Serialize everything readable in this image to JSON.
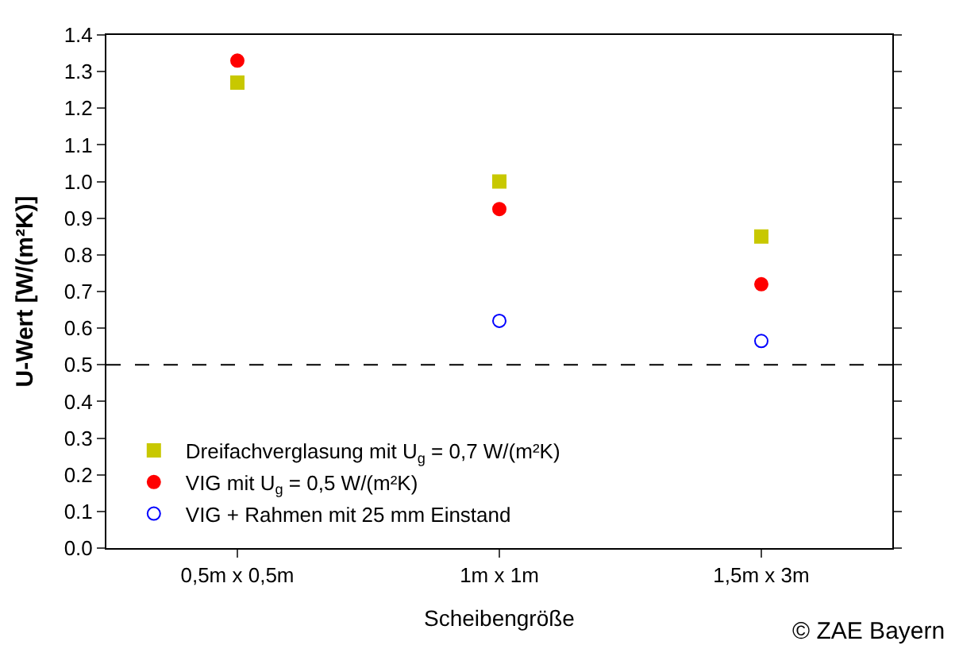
{
  "chart_data": {
    "type": "scatter",
    "xlabel": "Scheibengröße",
    "ylabel": "U-Wert [W/(m²K)]",
    "categories": [
      "0,5m x 0,5m",
      "1m x 1m",
      "1,5m x 3m"
    ],
    "series": [
      {
        "name": "Dreifachverglasung mit U$_{g}$ = 0,7 W/(m²K)",
        "color": "#c8c800",
        "marker": "square",
        "values": [
          1.27,
          1.0,
          0.85
        ]
      },
      {
        "name": "VIG mit U$_{g}$ = 0,5 W/(m²K)",
        "color": "#ff0000",
        "marker": "circle",
        "values": [
          1.33,
          0.925,
          0.72
        ]
      },
      {
        "name": "VIG + Rahmen mit 25 mm Einstand",
        "color": "#0000ff",
        "marker": "circle-open",
        "values": [
          null,
          0.62,
          0.565
        ]
      }
    ],
    "ylim": [
      0,
      1.4
    ],
    "yticks": [
      {
        "value": 0,
        "label": "0.0"
      },
      0.1,
      0.2,
      0.3,
      0.4,
      0.5,
      0.6,
      0.7,
      0.8,
      0.9,
      {
        "value": 1,
        "label": "1.0"
      },
      1.1,
      1.2,
      1.3,
      1.4
    ],
    "ref_lines": [
      {
        "axis": "y",
        "value": 0.5,
        "color": "#000000",
        "line_style": "dashed"
      }
    ],
    "legend": "bottom left",
    "annotations": [
      "© ZAE Bayern"
    ]
  }
}
